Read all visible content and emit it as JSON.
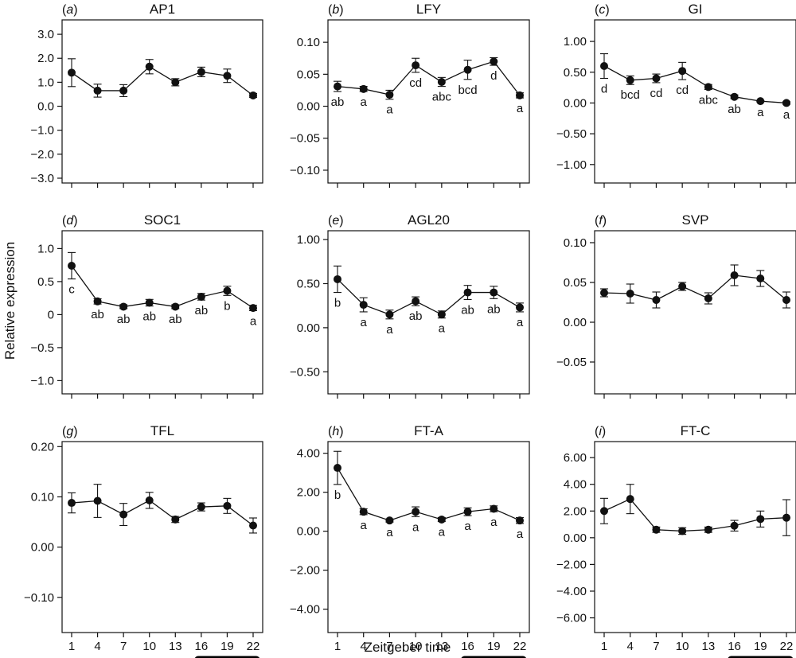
{
  "figure": {
    "ylabel": "Relative expression",
    "xlabel": "Zeitgeber time",
    "dark_bar_color": "#000000",
    "line_color": "#111111",
    "x_ticks": [
      1,
      4,
      7,
      10,
      13,
      16,
      19,
      22
    ],
    "dark_period": [
      16,
      22
    ]
  },
  "chart_data": [
    {
      "type": "line",
      "letter": "a",
      "title": "AP1",
      "x": [
        1,
        4,
        7,
        10,
        13,
        16,
        19,
        22
      ],
      "values": [
        1.4,
        0.65,
        0.65,
        1.65,
        1.0,
        1.43,
        1.27,
        0.45
      ],
      "errors": [
        0.58,
        0.27,
        0.25,
        0.3,
        0.15,
        0.2,
        0.28,
        0.08
      ],
      "letters": [],
      "ylim": [
        -3.2,
        3.6
      ],
      "yticks": [
        -3,
        -2,
        -1,
        0,
        1,
        2,
        3
      ],
      "ytick_labels": [
        "−3.0",
        "−2.0",
        "−1.0",
        "0.0",
        "1.0",
        "2.0",
        "3.0"
      ],
      "show_xticks": false
    },
    {
      "type": "line",
      "letter": "b",
      "title": "LFY",
      "x": [
        1,
        4,
        7,
        10,
        13,
        16,
        19,
        22
      ],
      "values": [
        0.031,
        0.027,
        0.018,
        0.064,
        0.038,
        0.057,
        0.07,
        0.017
      ],
      "errors": [
        0.008,
        0.004,
        0.007,
        0.011,
        0.007,
        0.015,
        0.006,
        0.004
      ],
      "letters": [
        "ab",
        "a",
        "a",
        "cd",
        "abc",
        "bcd",
        "d",
        "a"
      ],
      "ylim": [
        -0.12,
        0.135
      ],
      "yticks": [
        -0.1,
        -0.05,
        0,
        0.05,
        0.1
      ],
      "ytick_labels": [
        "−0.10",
        "−0.05",
        "0.00",
        "0.05",
        "0.10"
      ],
      "show_xticks": false
    },
    {
      "type": "line",
      "letter": "c",
      "title": "GI",
      "x": [
        1,
        4,
        7,
        10,
        13,
        16,
        19,
        22
      ],
      "values": [
        0.6,
        0.37,
        0.4,
        0.52,
        0.26,
        0.1,
        0.03,
        0.0
      ],
      "errors": [
        0.2,
        0.07,
        0.07,
        0.14,
        0.04,
        0.03,
        0.01,
        0.02
      ],
      "letters": [
        "d",
        "bcd",
        "cd",
        "cd",
        "abc",
        "ab",
        "a",
        "a"
      ],
      "ylim": [
        -1.3,
        1.35
      ],
      "yticks": [
        -1,
        -0.5,
        0,
        0.5,
        1
      ],
      "ytick_labels": [
        "−1.00",
        "−0.50",
        "0.00",
        "0.50",
        "1.00"
      ],
      "show_xticks": false
    },
    {
      "type": "line",
      "letter": "d",
      "title": "SOC1",
      "x": [
        1,
        4,
        7,
        10,
        13,
        16,
        19,
        22
      ],
      "values": [
        0.74,
        0.2,
        0.12,
        0.18,
        0.12,
        0.27,
        0.36,
        0.1
      ],
      "errors": [
        0.2,
        0.04,
        0.03,
        0.05,
        0.03,
        0.05,
        0.07,
        0.04
      ],
      "letters": [
        "c",
        "ab",
        "ab",
        "ab",
        "ab",
        "ab",
        "b",
        "a"
      ],
      "ylim": [
        -1.2,
        1.27
      ],
      "yticks": [
        -1,
        -0.5,
        0,
        0.5,
        1
      ],
      "ytick_labels": [
        "−1.0",
        "−0.5",
        "0",
        "0.5",
        "1.0"
      ],
      "show_xticks": false
    },
    {
      "type": "line",
      "letter": "e",
      "title": "AGL20",
      "x": [
        1,
        4,
        7,
        10,
        13,
        16,
        19,
        22
      ],
      "values": [
        0.55,
        0.26,
        0.15,
        0.3,
        0.15,
        0.4,
        0.4,
        0.23
      ],
      "errors": [
        0.15,
        0.08,
        0.05,
        0.05,
        0.04,
        0.08,
        0.07,
        0.05
      ],
      "letters": [
        "b",
        "a",
        "a",
        "ab",
        "a",
        "ab",
        "ab",
        "a"
      ],
      "ylim": [
        -0.75,
        1.1
      ],
      "yticks": [
        -0.5,
        0,
        0.5,
        1
      ],
      "ytick_labels": [
        "−0.50",
        "0.00",
        "0.50",
        "1.00"
      ],
      "show_xticks": false
    },
    {
      "type": "line",
      "letter": "f",
      "title": "SVP",
      "x": [
        1,
        4,
        7,
        10,
        13,
        16,
        19,
        22
      ],
      "values": [
        0.037,
        0.036,
        0.028,
        0.045,
        0.03,
        0.059,
        0.055,
        0.028
      ],
      "errors": [
        0.005,
        0.012,
        0.01,
        0.005,
        0.007,
        0.013,
        0.01,
        0.01
      ],
      "letters": [],
      "ylim": [
        -0.09,
        0.115
      ],
      "yticks": [
        -0.05,
        0,
        0.05,
        0.1
      ],
      "ytick_labels": [
        "−0.05",
        "0.00",
        "0.05",
        "0.10"
      ],
      "show_xticks": false
    },
    {
      "type": "line",
      "letter": "g",
      "title": "TFL",
      "x": [
        1,
        4,
        7,
        10,
        13,
        16,
        19,
        22
      ],
      "values": [
        0.088,
        0.092,
        0.065,
        0.093,
        0.055,
        0.08,
        0.082,
        0.043
      ],
      "errors": [
        0.02,
        0.033,
        0.022,
        0.016,
        0.006,
        0.008,
        0.015,
        0.015
      ],
      "letters": [],
      "ylim": [
        -0.17,
        0.21
      ],
      "yticks": [
        -0.1,
        0,
        0.1,
        0.2
      ],
      "ytick_labels": [
        "−0.10",
        "0.00",
        "0.10",
        "0.20"
      ],
      "show_xticks": true
    },
    {
      "type": "line",
      "letter": "h",
      "title": "FT-A",
      "x": [
        1,
        4,
        7,
        10,
        13,
        16,
        19,
        22
      ],
      "values": [
        3.25,
        1.0,
        0.55,
        1.0,
        0.6,
        1.0,
        1.15,
        0.55
      ],
      "errors": [
        0.85,
        0.15,
        0.08,
        0.25,
        0.1,
        0.2,
        0.15,
        0.15
      ],
      "letters": [
        "b",
        "a",
        "a",
        "a",
        "a",
        "a",
        "a",
        "a"
      ],
      "ylim": [
        -5.2,
        4.6
      ],
      "yticks": [
        -4,
        -2,
        0,
        2,
        4
      ],
      "ytick_labels": [
        "−4.00",
        "−2.00",
        "0.00",
        "2.00",
        "4.00"
      ],
      "show_xticks": true
    },
    {
      "type": "line",
      "letter": "i",
      "title": "FT-C",
      "x": [
        1,
        4,
        7,
        10,
        13,
        16,
        19,
        22
      ],
      "values": [
        2.0,
        2.9,
        0.6,
        0.5,
        0.6,
        0.9,
        1.4,
        1.5
      ],
      "errors": [
        0.95,
        1.1,
        0.2,
        0.25,
        0.2,
        0.4,
        0.6,
        1.35
      ],
      "letters": [],
      "ylim": [
        -7.1,
        7.2
      ],
      "yticks": [
        -6,
        -4,
        -2,
        0,
        2,
        4,
        6
      ],
      "ytick_labels": [
        "−6.00",
        "−4.00",
        "−2.00",
        "0.00",
        "2.00",
        "4.00",
        "6.00"
      ],
      "show_xticks": true
    }
  ]
}
